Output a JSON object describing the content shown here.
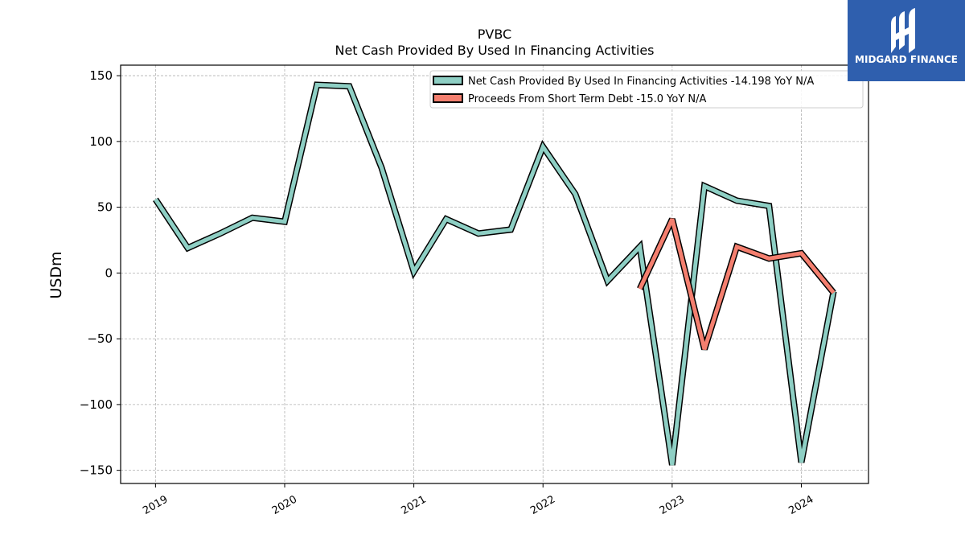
{
  "chart_data": {
    "type": "line",
    "title": "PVBC",
    "subtitle": "Net Cash Provided By Used In Financing Activities",
    "xlabel": "",
    "ylabel": "USDm",
    "ylim": [
      -160,
      158
    ],
    "xlim": [
      2018.73,
      2024.52
    ],
    "yticks": [
      150,
      100,
      50,
      0,
      -50,
      -100,
      -150
    ],
    "ytick_labels": [
      "150",
      "100",
      "50",
      "0",
      "−50",
      "−100",
      "−150"
    ],
    "xticks": [
      2019,
      2020,
      2021,
      2022,
      2023,
      2024
    ],
    "xtick_labels": [
      "2019",
      "2020",
      "2021",
      "2022",
      "2023",
      "2024"
    ],
    "grid": true,
    "legend_position": "top-right",
    "series": [
      {
        "name": "Net Cash Provided By Used In Financing Activities  -14.198 YoY N/A",
        "color": "#8ecfc4",
        "x": [
          2019.0,
          2019.25,
          2019.5,
          2019.75,
          2020.0,
          2020.25,
          2020.5,
          2020.75,
          2021.0,
          2021.25,
          2021.5,
          2021.75,
          2022.0,
          2022.25,
          2022.5,
          2022.75,
          2023.0,
          2023.25,
          2023.5,
          2023.75,
          2024.0,
          2024.25
        ],
        "values": [
          56,
          19,
          30,
          42,
          39,
          143,
          142,
          80,
          1,
          41,
          30,
          33,
          96,
          60,
          -6,
          20,
          -146,
          66,
          55,
          51,
          -144,
          -14
        ]
      },
      {
        "name": "Proceeds From Short Term Debt  -15.0 YoY N/A",
        "color": "#f47f6f",
        "x": [
          2022.75,
          2023.0,
          2023.25,
          2023.5,
          2023.75,
          2024.0,
          2024.25
        ],
        "values": [
          -12,
          41,
          -58,
          20,
          11,
          15,
          -15
        ]
      }
    ]
  },
  "logo": {
    "text": "MIDGARD FINANCE",
    "background": "#2f5fae"
  }
}
